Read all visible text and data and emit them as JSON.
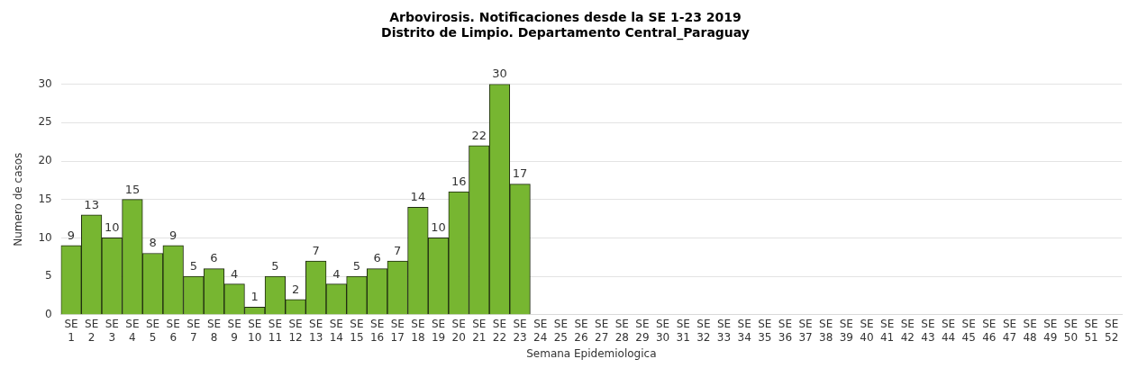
{
  "chart_data": {
    "type": "bar",
    "title": [
      "Arbovirosis. Notificaciones desde la SE 1-23 2019",
      "Distrito de Limpio. Departamento Central_Paraguay"
    ],
    "xlabel": "Semana Epidemiologica",
    "ylabel": "Numero de casos",
    "categories": [
      "SE 1",
      "SE 2",
      "SE 3",
      "SE 4",
      "SE 5",
      "SE 6",
      "SE 7",
      "SE 8",
      "SE 9",
      "SE 10",
      "SE 11",
      "SE 12",
      "SE 13",
      "SE 14",
      "SE 15",
      "SE 16",
      "SE 17",
      "SE 18",
      "SE 19",
      "SE 20",
      "SE 21",
      "SE 22",
      "SE 23",
      "SE 24",
      "SE 25",
      "SE 26",
      "SE 27",
      "SE 28",
      "SE 29",
      "SE 30",
      "SE 31",
      "SE 32",
      "SE 33",
      "SE 34",
      "SE 35",
      "SE 36",
      "SE 37",
      "SE 38",
      "SE 39",
      "SE 40",
      "SE 41",
      "SE 42",
      "SE 43",
      "SE 44",
      "SE 45",
      "SE 46",
      "SE 47",
      "SE 48",
      "SE 49",
      "SE 50",
      "SE 51",
      "SE 52"
    ],
    "values": [
      9,
      13,
      10,
      15,
      8,
      9,
      5,
      6,
      4,
      1,
      5,
      2,
      7,
      4,
      5,
      6,
      7,
      14,
      10,
      16,
      22,
      30,
      17,
      null,
      null,
      null,
      null,
      null,
      null,
      null,
      null,
      null,
      null,
      null,
      null,
      null,
      null,
      null,
      null,
      null,
      null,
      null,
      null,
      null,
      null,
      null,
      null,
      null,
      null,
      null,
      null,
      null
    ],
    "color": "#77b631",
    "ylim": [
      0,
      30
    ],
    "yticks": [
      0,
      5,
      10,
      15,
      20,
      25,
      30
    ],
    "grid": "y",
    "data_labels": true,
    "legend": false
  }
}
